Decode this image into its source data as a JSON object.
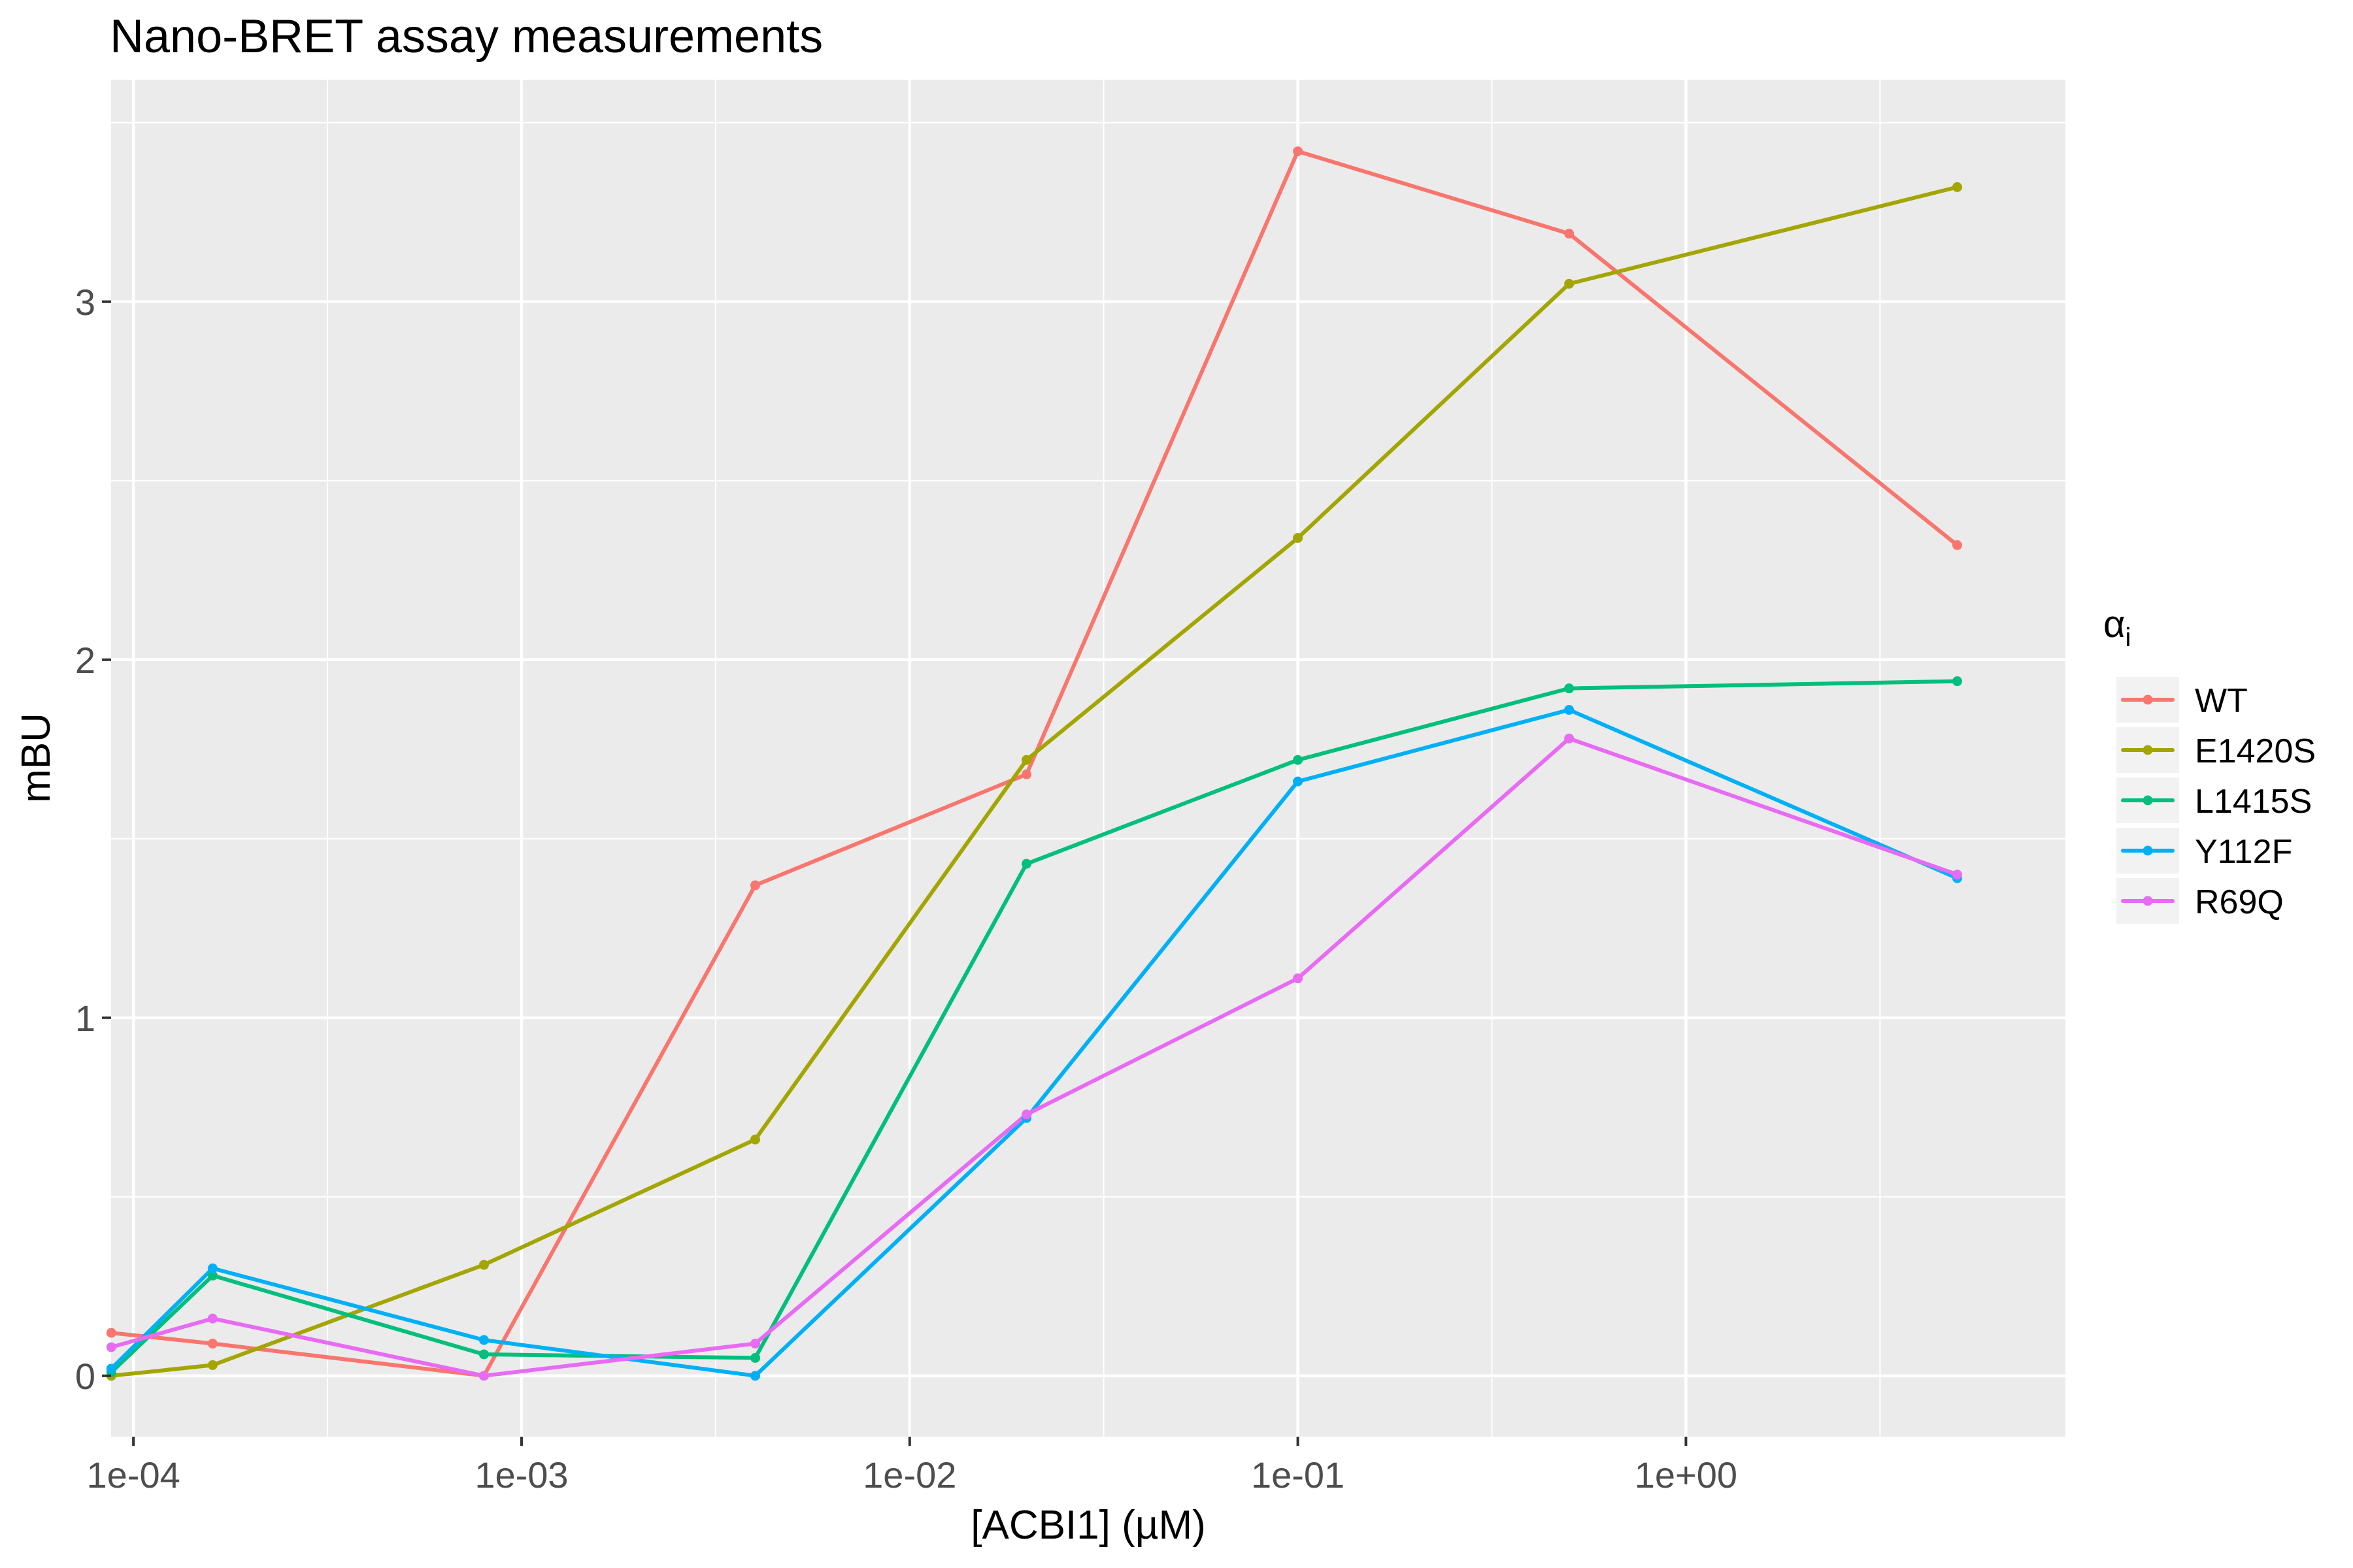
{
  "chart_data": {
    "type": "line",
    "title": "Nano-BRET assay measurements",
    "xlabel": "[ACBI1] (µM)",
    "ylabel": "mBU",
    "x_scale": "log10",
    "xlim": [
      8.76e-05,
      9.5
    ],
    "ylim": [
      -0.17,
      3.62
    ],
    "x_ticks": [
      {
        "value": 0.0001,
        "label": "1e-04"
      },
      {
        "value": 0.001,
        "label": "1e-03"
      },
      {
        "value": 0.01,
        "label": "1e-02"
      },
      {
        "value": 0.1,
        "label": "1e-01"
      },
      {
        "value": 1,
        "label": "1e+00"
      }
    ],
    "y_ticks": [
      {
        "value": 0,
        "label": "0"
      },
      {
        "value": 1,
        "label": "1"
      },
      {
        "value": 2,
        "label": "2"
      },
      {
        "value": 3,
        "label": "3"
      }
    ],
    "grid": true,
    "legend": {
      "title": "α",
      "title_subscript": "i",
      "position": "right"
    },
    "x": [
      8.77e-05,
      0.00016,
      0.0008,
      0.004,
      0.02,
      0.1,
      0.5,
      5
    ],
    "series": [
      {
        "name": "WT",
        "color": "#F8766D",
        "values": [
          0.12,
          0.09,
          0.0,
          1.37,
          1.68,
          3.42,
          3.19,
          2.32
        ]
      },
      {
        "name": "E1420S",
        "color": "#A3A500",
        "values": [
          0.0,
          0.03,
          0.31,
          0.66,
          1.72,
          2.34,
          3.05,
          3.32
        ]
      },
      {
        "name": "L1415S",
        "color": "#00BF7D",
        "values": [
          0.01,
          0.28,
          0.06,
          0.05,
          1.43,
          1.72,
          1.92,
          1.94
        ]
      },
      {
        "name": "Y112F",
        "color": "#00B0F6",
        "values": [
          0.02,
          0.3,
          0.1,
          0.0,
          0.72,
          1.66,
          1.86,
          1.39
        ]
      },
      {
        "name": "R69Q",
        "color": "#E76BF3",
        "values": [
          0.08,
          0.16,
          0.0,
          0.09,
          0.73,
          1.11,
          1.78,
          1.4
        ]
      }
    ]
  }
}
